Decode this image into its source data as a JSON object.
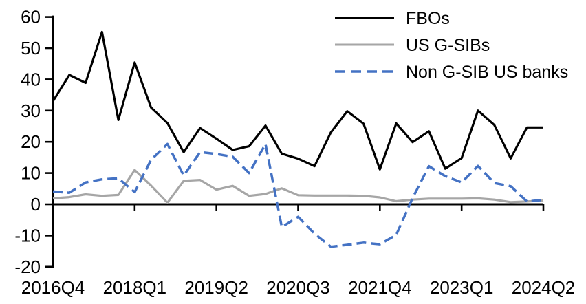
{
  "chart_data": {
    "type": "line",
    "title": "",
    "xlabel": "",
    "ylabel": "",
    "grid": false,
    "legend_position": "top-right",
    "ylim": [
      -20,
      60
    ],
    "y_ticks": [
      60,
      50,
      40,
      30,
      20,
      10,
      0,
      -10,
      -20
    ],
    "x_categories": [
      "2016Q4",
      "2017Q1",
      "2017Q2",
      "2017Q3",
      "2017Q4",
      "2018Q1",
      "2018Q2",
      "2018Q3",
      "2018Q4",
      "2019Q1",
      "2019Q2",
      "2019Q3",
      "2019Q4",
      "2020Q1",
      "2020Q2",
      "2020Q3",
      "2020Q4",
      "2021Q1",
      "2021Q2",
      "2021Q3",
      "2021Q4",
      "2022Q1",
      "2022Q2",
      "2022Q3",
      "2022Q4",
      "2023Q1",
      "2023Q2",
      "2023Q3",
      "2023Q4",
      "2024Q1",
      "2024Q2"
    ],
    "x_tick_indices": [
      0,
      5,
      10,
      15,
      20,
      25,
      30
    ],
    "x_tick_labels": [
      "2016Q4",
      "2018Q1",
      "2019Q2",
      "2020Q3",
      "2021Q4",
      "2023Q1",
      "2024Q2"
    ],
    "series": [
      {
        "name": "FBOs",
        "color": "#000000",
        "style": "solid",
        "values": [
          33,
          41.4,
          38.9,
          55.2,
          27,
          45.4,
          31,
          26,
          16.7,
          24.4,
          21,
          17.4,
          18.6,
          25.2,
          16.2,
          14.6,
          12.2,
          23,
          29.8,
          25.8,
          11.2,
          25.9,
          19.9,
          23.4,
          11.4,
          14.8,
          30,
          25.4,
          14.7,
          24.6,
          24.6
        ]
      },
      {
        "name": "US G-SIBs",
        "color": "#A6A6A6",
        "style": "solid",
        "values": [
          1.9,
          2.3,
          3.2,
          2.7,
          3,
          11,
          6,
          0.5,
          7.5,
          7.8,
          4.7,
          5.9,
          2.7,
          3.3,
          5.1,
          2.9,
          2.8,
          2.8,
          2.8,
          2.7,
          2.2,
          1,
          1.5,
          1.8,
          1.8,
          1.8,
          1.9,
          1.5,
          0.7,
          0.9,
          1.2
        ]
      },
      {
        "name": "Non G-SIB US banks",
        "color": "#4472C4",
        "style": "dashed",
        "values": [
          4.1,
          3.7,
          7,
          8,
          8.3,
          3.9,
          14.2,
          19.3,
          9.2,
          16.7,
          16.1,
          15.2,
          10,
          19.3,
          -7.3,
          -4,
          -9.4,
          -13.6,
          -13,
          -12.3,
          -12.8,
          -9.8,
          2,
          12.2,
          9,
          7,
          12.3,
          6.8,
          5.8,
          0.9,
          1.4
        ]
      }
    ]
  }
}
